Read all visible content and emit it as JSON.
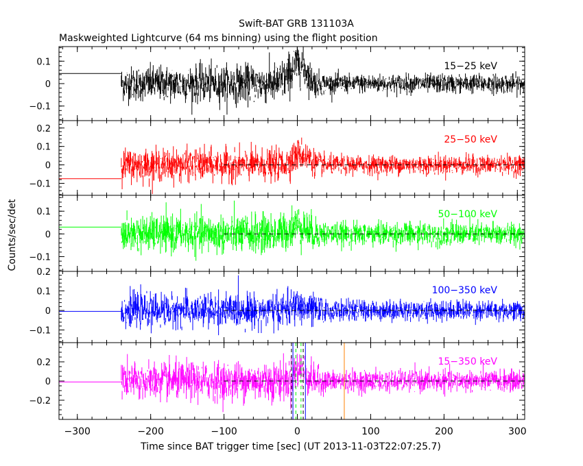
{
  "chart_data": {
    "type": "line",
    "title": "Swift-BAT GRB 131103A",
    "subtitle": "Maskweighted Lightcurve (64 ms binning) using the flight position",
    "xlabel": "Time since BAT trigger time [sec] (UT 2013-11-03T22:07:25.7)",
    "ylabel": "Counts/sec/det",
    "xlim": [
      -325,
      310
    ],
    "x_ticks": [
      -300,
      -200,
      -100,
      0,
      100,
      200,
      300
    ],
    "x_tick_labels": [
      "−300",
      "−200",
      "−100",
      "0",
      "100",
      "200",
      "300"
    ],
    "data_start": -240,
    "data_end": 310,
    "grid": false,
    "panels": [
      {
        "name": "15−25 keV",
        "color": "#000000",
        "ylim": [
          -0.165,
          0.165
        ],
        "y_ticks": [
          0.1,
          0,
          -0.1
        ],
        "y_tick_labels": [
          "0.1",
          "0",
          "−0.1"
        ],
        "pre_level": 0.045,
        "zero_dashed": false,
        "envelope": [
          {
            "t": -240,
            "amp": 0.09
          },
          {
            "t": -40,
            "amp": 0.1
          },
          {
            "t": 0,
            "amp": 0.12
          },
          {
            "t": 15,
            "amp": 0.09
          },
          {
            "t": 40,
            "amp": 0.05
          },
          {
            "t": 310,
            "amp": 0.05
          }
        ],
        "bumps": [
          {
            "t": 5,
            "value": 0.06,
            "width": 12
          },
          {
            "t": -5,
            "value": 0.04,
            "width": 15
          }
        ]
      },
      {
        "name": "25−50 keV",
        "color": "#ff0000",
        "ylim": [
          -0.165,
          0.24
        ],
        "y_ticks": [
          0.2,
          0.1,
          0,
          -0.1
        ],
        "y_tick_labels": [
          "0.2",
          "0.1",
          "0",
          "−0.1"
        ],
        "pre_level": -0.075,
        "zero_dashed": true,
        "envelope": [
          {
            "t": -240,
            "amp": 0.1
          },
          {
            "t": -30,
            "amp": 0.1
          },
          {
            "t": 10,
            "amp": 0.1
          },
          {
            "t": 40,
            "amp": 0.06
          },
          {
            "t": 310,
            "amp": 0.06
          }
        ],
        "bumps": [
          {
            "t": 5,
            "value": 0.06,
            "width": 15
          }
        ]
      },
      {
        "name": "50−100 keV",
        "color": "#00ff00",
        "ylim": [
          -0.165,
          0.17
        ],
        "y_ticks": [
          0.1,
          0,
          -0.1
        ],
        "y_tick_labels": [
          "0.1",
          "0",
          "−0.1"
        ],
        "pre_level": 0.03,
        "zero_dashed": true,
        "envelope": [
          {
            "t": -240,
            "amp": 0.09
          },
          {
            "t": -30,
            "amp": 0.1
          },
          {
            "t": 15,
            "amp": 0.1
          },
          {
            "t": 40,
            "amp": 0.06
          },
          {
            "t": 310,
            "amp": 0.06
          }
        ],
        "bumps": [
          {
            "t": 0,
            "value": 0.04,
            "width": 15
          }
        ]
      },
      {
        "name": "100−350 keV",
        "color": "#0000ff",
        "ylim": [
          -0.165,
          0.2
        ],
        "y_ticks": [
          0.2,
          0.1,
          0,
          -0.1
        ],
        "y_tick_labels": [
          "0.2",
          "0.1",
          "0",
          "−0.1"
        ],
        "pre_level": -0.005,
        "zero_dashed": true,
        "envelope": [
          {
            "t": -240,
            "amp": 0.1
          },
          {
            "t": 20,
            "amp": 0.1
          },
          {
            "t": 45,
            "amp": 0.06
          },
          {
            "t": 310,
            "amp": 0.06
          }
        ],
        "bumps": [
          {
            "t": 0,
            "value": 0.02,
            "width": 15
          }
        ]
      },
      {
        "name": "15−350 keV",
        "color": "#ff00ff",
        "ylim": [
          -0.4,
          0.4
        ],
        "y_ticks": [
          0.2,
          0,
          -0.2
        ],
        "y_tick_labels": [
          "0.2",
          "0",
          "−0.2"
        ],
        "pre_level": -0.01,
        "zero_dashed": true,
        "envelope": [
          {
            "t": -240,
            "amp": 0.22
          },
          {
            "t": -20,
            "amp": 0.24
          },
          {
            "t": 10,
            "amp": 0.24
          },
          {
            "t": 40,
            "amp": 0.13
          },
          {
            "t": 310,
            "amp": 0.13
          }
        ],
        "bumps": [
          {
            "t": 3,
            "value": 0.12,
            "width": 12
          }
        ],
        "markers": [
          {
            "t": -8,
            "color": "#000000",
            "style": "dashed"
          },
          {
            "t": 8,
            "color": "#000000",
            "style": "dashed"
          },
          {
            "t": -2,
            "color": "#00ff00",
            "style": "dashed"
          },
          {
            "t": 5,
            "color": "#00ff00",
            "style": "dashed"
          },
          {
            "t": -6,
            "color": "#0000ff",
            "style": "solid"
          },
          {
            "t": 11,
            "color": "#0000ff",
            "style": "solid"
          },
          {
            "t": 64,
            "color": "#ff8000",
            "style": "solid"
          }
        ]
      }
    ]
  }
}
